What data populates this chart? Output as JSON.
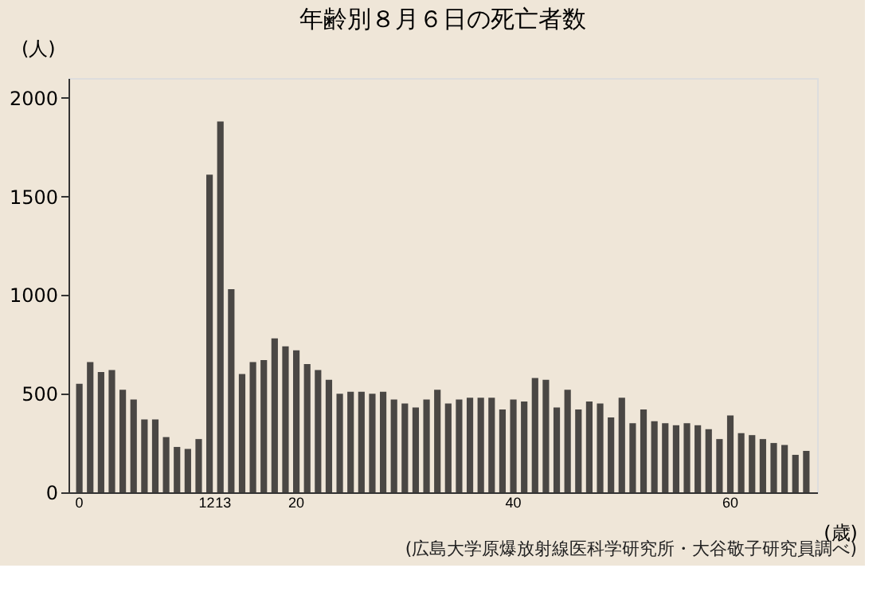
{
  "chart_data": {
    "type": "bar",
    "title": "年齢別８月６日の死亡者数",
    "xlabel": "(歳)",
    "ylabel": "(人)",
    "annotations": [
      "(広島大学原爆放射線医科学研究所・大谷敬子研究員調べ)"
    ],
    "categories": [
      "0",
      null,
      null,
      null,
      null,
      null,
      null,
      null,
      null,
      null,
      null,
      null,
      "12",
      "13",
      null,
      null,
      null,
      null,
      null,
      null,
      "20",
      null,
      null,
      null,
      null,
      null,
      null,
      null,
      null,
      null,
      null,
      null,
      null,
      null,
      null,
      null,
      null,
      null,
      null,
      null,
      "40",
      null,
      null,
      null,
      null,
      null,
      null,
      null,
      null,
      null,
      null,
      null,
      null,
      null,
      null,
      null,
      null,
      null,
      null,
      null,
      "60",
      null,
      null,
      null,
      null,
      null,
      null,
      null
    ],
    "values": [
      550,
      660,
      610,
      620,
      520,
      470,
      370,
      370,
      280,
      230,
      220,
      270,
      1610,
      1880,
      1030,
      600,
      660,
      670,
      780,
      740,
      720,
      650,
      620,
      570,
      500,
      510,
      510,
      500,
      510,
      470,
      450,
      430,
      470,
      520,
      450,
      470,
      480,
      480,
      480,
      420,
      470,
      460,
      580,
      570,
      430,
      520,
      420,
      460,
      450,
      380,
      480,
      350,
      420,
      360,
      350,
      340,
      350,
      340,
      320,
      270,
      390,
      300,
      290,
      270,
      250,
      240,
      190,
      210
    ],
    "color": "#4a4744",
    "ylim": [
      0,
      2100
    ],
    "yticks": [
      0,
      500,
      1000,
      1500,
      2000
    ],
    "grid": false
  }
}
